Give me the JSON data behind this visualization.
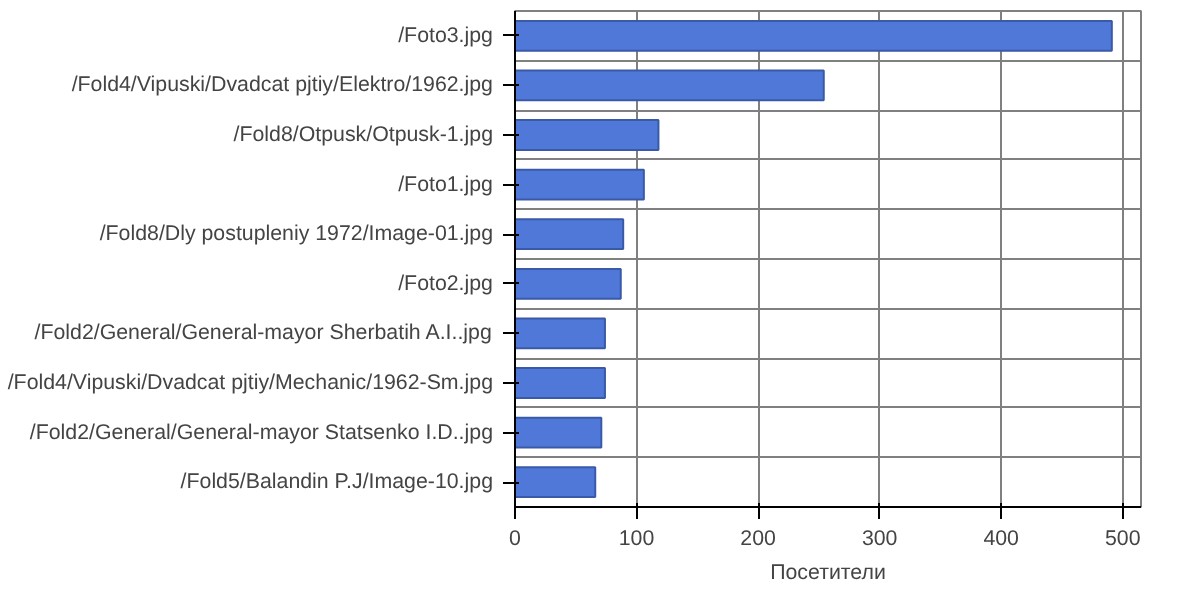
{
  "chart_data": {
    "type": "bar",
    "orientation": "horizontal",
    "xlabel": "Посетители",
    "categories": [
      "/Foto3.jpg",
      "/Fold4/Vipuski/Dvadcat pjtiy/Elektro/1962.jpg",
      "/Fold8/Otpusk/Otpusk-1.jpg",
      "/Foto1.jpg",
      "/Fold8/Dly postupleniy 1972/Image-01.jpg",
      "/Foto2.jpg",
      "/Fold2/General/General-mayor Sherbatih A.I..jpg",
      "/Fold4/Vipuski/Dvadcat pjtiy/Mechanic/1962-Sm.jpg",
      "/Fold2/General/General-mayor Statsenko I.D..jpg",
      "/Fold5/Balandin P.J/Image-10.jpg"
    ],
    "values": [
      491,
      254,
      118,
      106,
      89,
      87,
      74,
      74,
      71,
      66
    ],
    "color": "#4f78d8",
    "xlim": [
      0,
      515
    ],
    "xticks": [
      0,
      100,
      200,
      300,
      400,
      500
    ],
    "grid": true
  }
}
